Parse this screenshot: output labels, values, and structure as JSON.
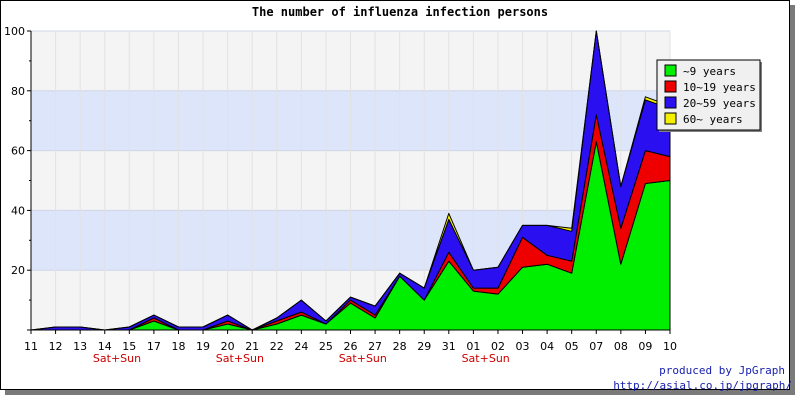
{
  "chart_data": {
    "type": "area",
    "stacked": true,
    "title": "The number of influenza infection persons",
    "xlabel": "",
    "ylabel": "",
    "ylim": [
      0,
      100
    ],
    "yticks": [
      20,
      40,
      60,
      80,
      100
    ],
    "grid": "horizontal bands",
    "legend_position": "top-right",
    "categories": [
      "11",
      "12",
      "13",
      "14",
      "15",
      "17",
      "18",
      "19",
      "20",
      "21",
      "22",
      "24",
      "25",
      "26",
      "27",
      "28",
      "29",
      "31",
      "01",
      "02",
      "03",
      "04",
      "05",
      "07",
      "08",
      "09",
      "10"
    ],
    "weekend_markers": [
      {
        "after_index": 3,
        "text": "Sat+Sun"
      },
      {
        "after_index": 8,
        "text": "Sat+Sun"
      },
      {
        "after_index": 13,
        "text": "Sat+Sun"
      },
      {
        "after_index": 18,
        "text": "Sat+Sun"
      }
    ],
    "series": [
      {
        "name": "~9 years",
        "color": "#00ee00",
        "values": [
          0,
          0,
          0,
          0,
          0,
          3,
          0,
          0,
          2,
          0,
          2,
          5,
          2,
          9,
          4,
          18,
          10,
          23,
          13,
          12,
          21,
          22,
          19,
          63,
          22,
          49,
          50
        ]
      },
      {
        "name": "10~19 years",
        "color": "#ee0000",
        "values": [
          0,
          0,
          0,
          0,
          0,
          1,
          0,
          0,
          1,
          0,
          1,
          1,
          0,
          1,
          1,
          0,
          0,
          3,
          1,
          2,
          10,
          3,
          4,
          9,
          12,
          11,
          8
        ]
      },
      {
        "name": "20~59 years",
        "color": "#2a10f0",
        "values": [
          0,
          1,
          1,
          0,
          1,
          1,
          1,
          1,
          2,
          0,
          1,
          4,
          1,
          1,
          3,
          1,
          4,
          11,
          6,
          7,
          4,
          10,
          10,
          28,
          14,
          17,
          16
        ]
      },
      {
        "name": "60~ years",
        "color": "#f4f000",
        "values": [
          0,
          0,
          0,
          0,
          0,
          0,
          0,
          0,
          0,
          0,
          0,
          0,
          0,
          0,
          0,
          0,
          0,
          2,
          0,
          0,
          0,
          0,
          1,
          0,
          0,
          1,
          1
        ]
      }
    ]
  },
  "credits": {
    "line1": "produced by JpGraph",
    "line2": "http://asial.co.jp/jpgraph/"
  }
}
